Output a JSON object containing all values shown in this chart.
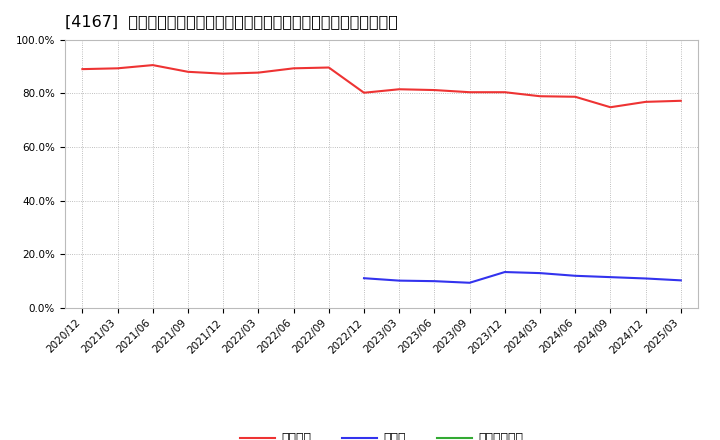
{
  "title": "[4167]  自己資本、のれん、繰延税金資産の総資産に対する比率の推移",
  "x_labels": [
    "2020/12",
    "2021/03",
    "2021/06",
    "2021/09",
    "2021/12",
    "2022/03",
    "2022/06",
    "2022/09",
    "2022/12",
    "2023/03",
    "2023/06",
    "2023/09",
    "2023/12",
    "2024/03",
    "2024/06",
    "2024/09",
    "2024/12",
    "2025/03"
  ],
  "jikoshihon": [
    0.89,
    0.893,
    0.905,
    0.88,
    0.873,
    0.877,
    0.893,
    0.896,
    0.802,
    0.815,
    0.812,
    0.804,
    0.804,
    0.789,
    0.787,
    0.748,
    0.768,
    0.772
  ],
  "noren": [
    null,
    null,
    null,
    null,
    null,
    null,
    null,
    null,
    0.111,
    0.102,
    0.1,
    0.094,
    0.134,
    0.13,
    0.12,
    0.115,
    0.11,
    0.103
  ],
  "kurinobe": [
    null,
    null,
    null,
    null,
    null,
    null,
    null,
    null,
    null,
    null,
    null,
    null,
    null,
    null,
    null,
    null,
    null,
    null
  ],
  "jikoshihon_color": "#ee3333",
  "noren_color": "#3333ee",
  "kurinobe_color": "#33aa33",
  "bg_color": "#ffffff",
  "plot_bg_color": "#ffffff",
  "grid_color": "#aaaaaa",
  "ylim": [
    0.0,
    1.0
  ],
  "yticks": [
    0.0,
    0.2,
    0.4,
    0.6,
    0.8,
    1.0
  ],
  "ytick_labels": [
    "0.0%",
    "20.0%",
    "40.0%",
    "60.0%",
    "80.0%",
    "100.0%"
  ],
  "legend_labels": [
    "自己資本",
    "のれん",
    "繰延税金資産"
  ],
  "title_fontsize": 11.5,
  "tick_fontsize": 7.5,
  "legend_fontsize": 9.0
}
